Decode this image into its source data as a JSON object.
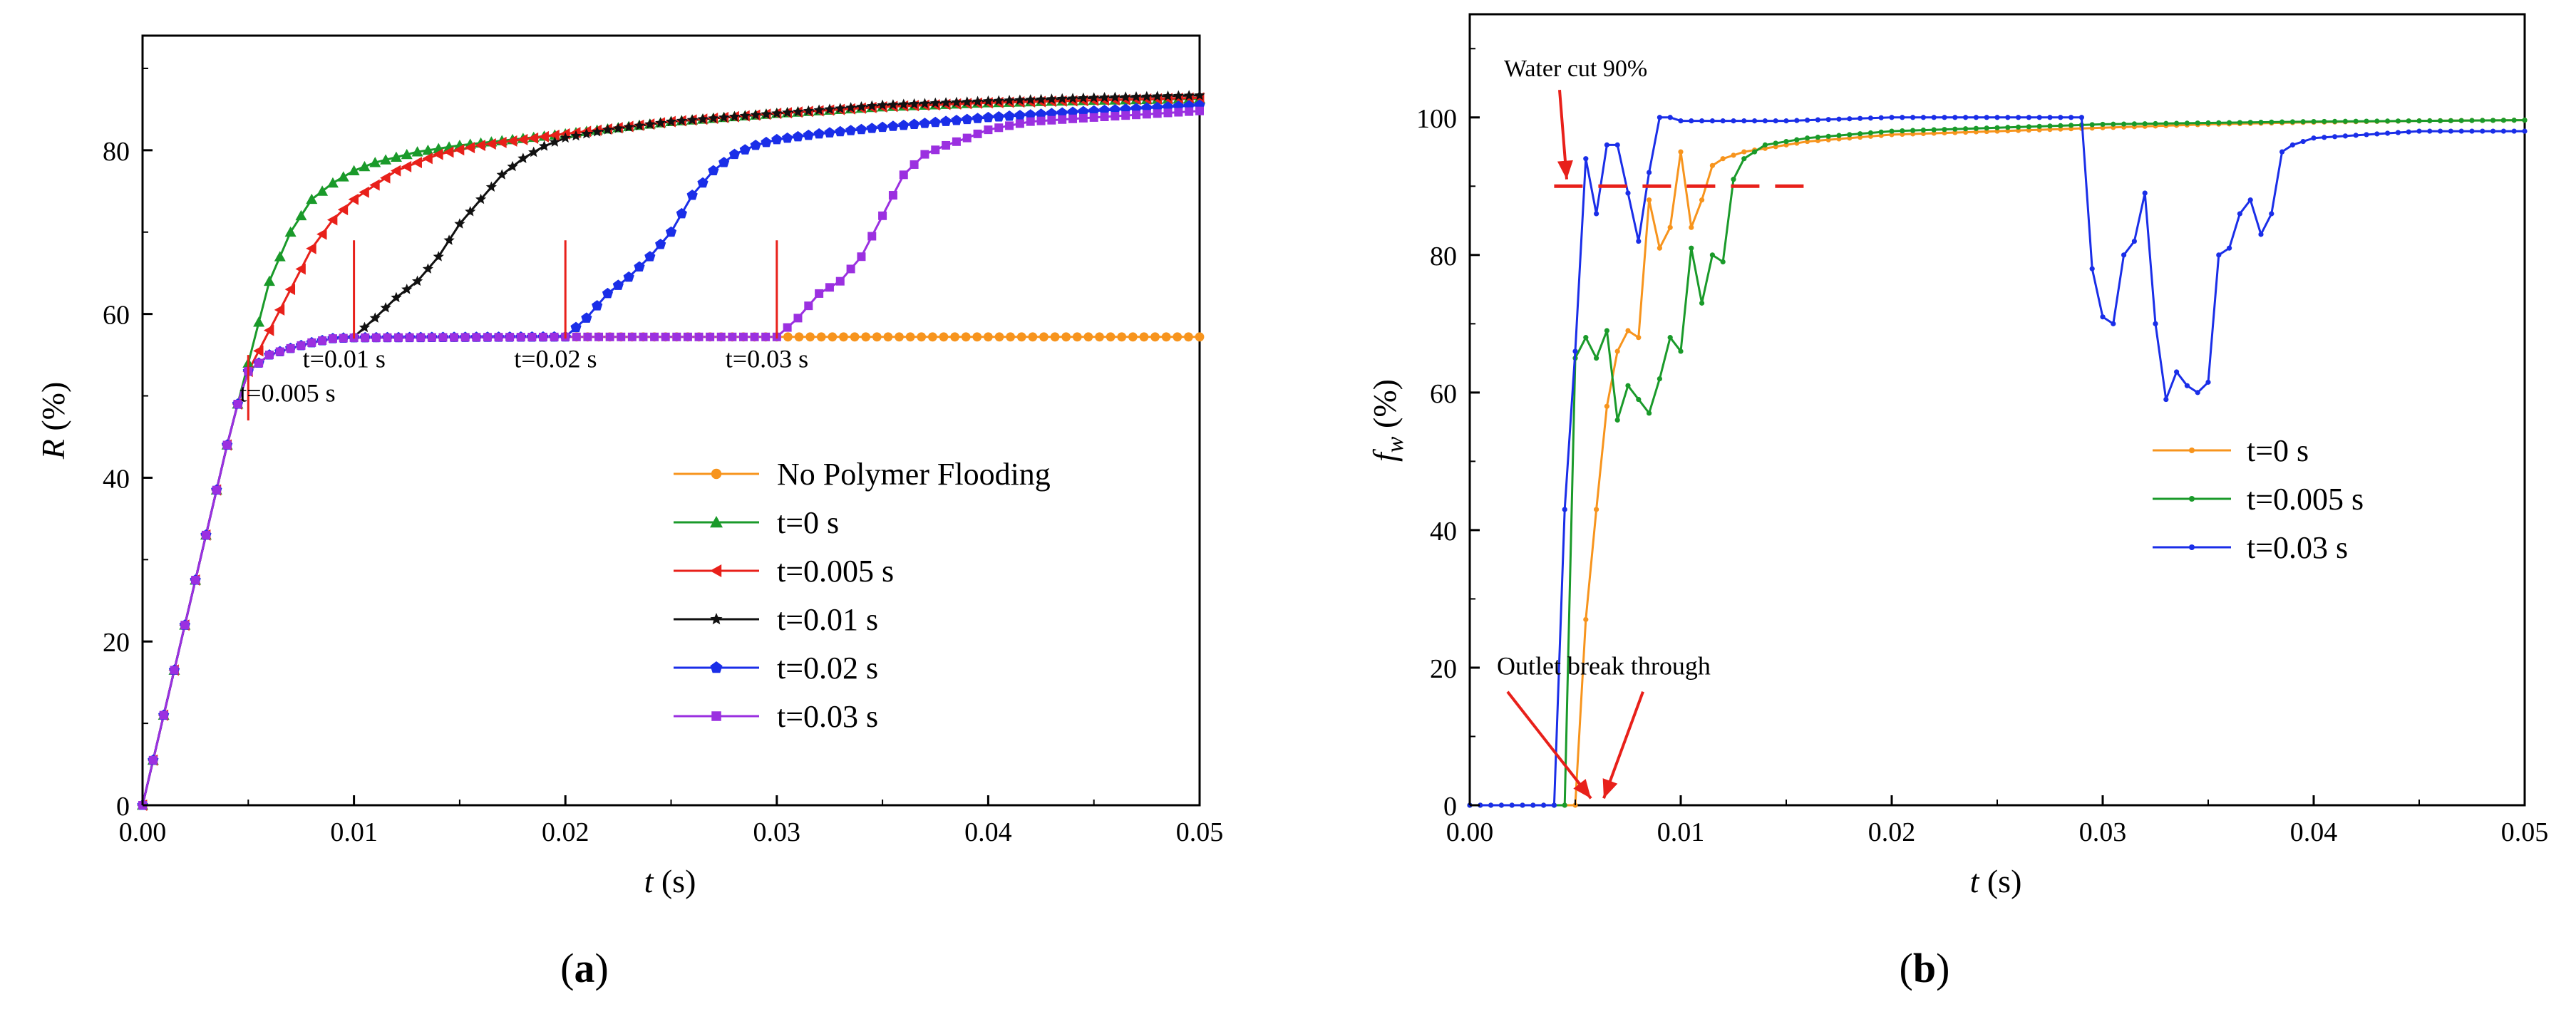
{
  "chart_data": [
    {
      "panel": "(a)",
      "type": "line",
      "ylabel": "R (%)",
      "ylabel_italic": "R",
      "ylabel_rest": " (%)",
      "xlabel": "t (s)",
      "xlabel_italic": "t",
      "xlabel_rest": " (s)",
      "xlim": [
        0,
        0.05
      ],
      "ylim": [
        0,
        94
      ],
      "xticks": [
        0,
        0.01,
        0.02,
        0.03,
        0.04,
        0.05
      ],
      "xtick_labels": [
        "0.00",
        "0.01",
        "0.02",
        "0.03",
        "0.04",
        "0.05"
      ],
      "yticks": [
        0,
        20,
        40,
        60,
        80
      ],
      "ytick_labels": [
        "0",
        "20",
        "40",
        "60",
        "80"
      ],
      "legend": "bottom-right",
      "series": [
        {
          "name": "No Polymer Flooding",
          "color": "#f7941d",
          "marker": "circle",
          "x": [
            0,
            0.0005,
            0.001,
            0.0015,
            0.002,
            0.0025,
            0.003,
            0.0035,
            0.004,
            0.0045,
            0.005,
            0.006,
            0.007,
            0.008,
            0.009,
            0.01,
            0.02,
            0.03,
            0.04,
            0.05
          ],
          "y": [
            0,
            5.5,
            11,
            16.5,
            22,
            27.5,
            33,
            38.5,
            44,
            49,
            53,
            55,
            55.8,
            56.5,
            57,
            57.1,
            57.2,
            57.2,
            57.2,
            57.2
          ]
        },
        {
          "name": "t=0 s",
          "color": "#1a9a2a",
          "marker": "triangle",
          "x": [
            0,
            0.0005,
            0.001,
            0.0015,
            0.002,
            0.0025,
            0.003,
            0.0035,
            0.004,
            0.0045,
            0.005,
            0.0055,
            0.006,
            0.007,
            0.008,
            0.009,
            0.01,
            0.011,
            0.013,
            0.015,
            0.02,
            0.025,
            0.03,
            0.035,
            0.04,
            0.045,
            0.05
          ],
          "y": [
            0,
            5.5,
            11,
            16.5,
            22,
            27.5,
            33,
            38.5,
            44,
            49,
            54,
            59,
            64,
            70,
            74,
            76,
            77.5,
            78.5,
            79.8,
            80.6,
            82,
            83.5,
            84.5,
            85.3,
            85.8,
            86.1,
            86.3
          ]
        },
        {
          "name": "t=0.005 s",
          "color": "#e8201a",
          "marker": "triangle-left",
          "x": [
            0,
            0.0005,
            0.001,
            0.0015,
            0.002,
            0.0025,
            0.003,
            0.0035,
            0.004,
            0.0045,
            0.005,
            0.006,
            0.007,
            0.008,
            0.009,
            0.01,
            0.012,
            0.014,
            0.016,
            0.02,
            0.025,
            0.03,
            0.035,
            0.04,
            0.045,
            0.05
          ],
          "y": [
            0,
            5.5,
            11,
            16.5,
            22,
            27.5,
            33,
            38.5,
            44,
            49,
            53,
            58,
            63,
            68,
            71.5,
            74,
            77.5,
            79.5,
            80.6,
            82,
            83.5,
            84.5,
            85.3,
            85.8,
            86.1,
            86.4
          ]
        },
        {
          "name": "t=0.01 s",
          "color": "#111111",
          "marker": "star",
          "x": [
            0,
            0.0005,
            0.001,
            0.0015,
            0.002,
            0.0025,
            0.003,
            0.0035,
            0.004,
            0.0045,
            0.005,
            0.006,
            0.007,
            0.008,
            0.009,
            0.01,
            0.011,
            0.012,
            0.013,
            0.014,
            0.015,
            0.016,
            0.017,
            0.018,
            0.019,
            0.02,
            0.022,
            0.025,
            0.03,
            0.035,
            0.04,
            0.045,
            0.05
          ],
          "y": [
            0,
            5.5,
            11,
            16.5,
            22,
            27.5,
            33,
            38.5,
            44,
            49,
            53,
            55,
            55.8,
            56.5,
            57,
            57.2,
            59.5,
            62,
            64,
            67,
            71,
            74,
            77,
            79,
            80.5,
            81.5,
            82.5,
            83.5,
            84.5,
            85.5,
            86,
            86.4,
            86.7
          ]
        },
        {
          "name": "t=0.02 s",
          "color": "#1a2ee8",
          "marker": "pentagon",
          "x": [
            0,
            0.0005,
            0.001,
            0.0015,
            0.002,
            0.0025,
            0.003,
            0.0035,
            0.004,
            0.0045,
            0.005,
            0.006,
            0.007,
            0.008,
            0.009,
            0.01,
            0.02,
            0.021,
            0.022,
            0.023,
            0.024,
            0.025,
            0.026,
            0.027,
            0.028,
            0.029,
            0.03,
            0.032,
            0.035,
            0.04,
            0.045,
            0.05
          ],
          "y": [
            0,
            5.5,
            11,
            16.5,
            22,
            27.5,
            33,
            38.5,
            44,
            49,
            53,
            55,
            55.8,
            56.5,
            57,
            57.1,
            57.2,
            59.5,
            62.5,
            64.5,
            67,
            70,
            74.5,
            77.5,
            79.5,
            80.6,
            81.3,
            82,
            82.8,
            84,
            84.8,
            85.5
          ]
        },
        {
          "name": "t=0.03 s",
          "color": "#9b30e0",
          "marker": "square",
          "x": [
            0,
            0.0005,
            0.001,
            0.0015,
            0.002,
            0.0025,
            0.003,
            0.0035,
            0.004,
            0.0045,
            0.005,
            0.006,
            0.007,
            0.008,
            0.009,
            0.01,
            0.02,
            0.03,
            0.031,
            0.032,
            0.033,
            0.034,
            0.035,
            0.036,
            0.037,
            0.038,
            0.039,
            0.04,
            0.042,
            0.045,
            0.05
          ],
          "y": [
            0,
            5.5,
            11,
            16.5,
            22,
            27.5,
            33,
            38.5,
            44,
            49,
            53,
            55,
            55.8,
            56.5,
            57,
            57.1,
            57.2,
            57.2,
            59.5,
            62.5,
            64,
            67,
            72,
            77,
            79.5,
            80.6,
            81.5,
            82.5,
            83.5,
            84,
            84.8
          ]
        }
      ],
      "annotations": [
        {
          "text": "t=0.005 s",
          "x": 0.005,
          "y": 51
        },
        {
          "text": "t=0.01 s",
          "x": 0.01,
          "y": 60
        },
        {
          "text": "t=0.02 s",
          "x": 0.02,
          "y": 60.5
        },
        {
          "text": "t=0.03 s",
          "x": 0.03,
          "y": 60.5
        }
      ]
    },
    {
      "panel": "(b)",
      "type": "line",
      "ylabel": "fw (%)",
      "ylabel_italic": "f",
      "ylabel_sub": "w",
      "ylabel_rest": " (%)",
      "xlabel": "t (s)",
      "xlabel_italic": "t",
      "xlabel_rest": " (s)",
      "xlim": [
        0,
        0.05
      ],
      "ylim": [
        0,
        115
      ],
      "xticks": [
        0,
        0.01,
        0.02,
        0.03,
        0.04,
        0.05
      ],
      "xtick_labels": [
        "0.00",
        "0.01",
        "0.02",
        "0.03",
        "0.04",
        "0.05"
      ],
      "yticks": [
        0,
        20,
        40,
        60,
        80,
        100
      ],
      "ytick_labels": [
        "0",
        "20",
        "40",
        "60",
        "80",
        "100"
      ],
      "legend": "center-right",
      "series": [
        {
          "name": "t=0 s",
          "color": "#f7941d",
          "marker": "dot",
          "x": [
            0,
            0.001,
            0.002,
            0.003,
            0.004,
            0.0045,
            0.005,
            0.0055,
            0.006,
            0.0065,
            0.007,
            0.0075,
            0.008,
            0.0085,
            0.009,
            0.0095,
            0.01,
            0.0105,
            0.011,
            0.0115,
            0.012,
            0.013,
            0.014,
            0.015,
            0.016,
            0.018,
            0.02,
            0.025,
            0.03,
            0.035,
            0.04,
            0.045,
            0.05
          ],
          "y": [
            0,
            0,
            0,
            0,
            0,
            0,
            0,
            27,
            43,
            58,
            66,
            69,
            68,
            88,
            81,
            84,
            95,
            84,
            88,
            93,
            94,
            95,
            95.5,
            96,
            96.5,
            97,
            97.5,
            98,
            98.5,
            99,
            99.3,
            99.5,
            99.6
          ]
        },
        {
          "name": "t=0.005 s",
          "color": "#1a9a2a",
          "marker": "dot",
          "x": [
            0,
            0.001,
            0.002,
            0.003,
            0.004,
            0.0045,
            0.005,
            0.0055,
            0.006,
            0.0065,
            0.007,
            0.0075,
            0.008,
            0.0085,
            0.009,
            0.0095,
            0.01,
            0.0105,
            0.011,
            0.0115,
            0.012,
            0.0125,
            0.013,
            0.014,
            0.015,
            0.016,
            0.018,
            0.02,
            0.025,
            0.03,
            0.035,
            0.04,
            0.045,
            0.05
          ],
          "y": [
            0,
            0,
            0,
            0,
            0,
            0,
            65,
            68,
            65,
            69,
            56,
            61,
            59,
            57,
            62,
            68,
            66,
            81,
            73,
            80,
            79,
            91,
            94,
            96,
            96.5,
            97,
            97.5,
            98,
            98.5,
            99,
            99.2,
            99.4,
            99.5,
            99.6
          ]
        },
        {
          "name": "t=0.03 s",
          "color": "#1a2ee8",
          "marker": "dot",
          "x": [
            0,
            0.001,
            0.002,
            0.003,
            0.0035,
            0.004,
            0.0045,
            0.005,
            0.0055,
            0.006,
            0.0065,
            0.007,
            0.0075,
            0.008,
            0.0085,
            0.009,
            0.0095,
            0.01,
            0.015,
            0.02,
            0.025,
            0.029,
            0.0295,
            0.03,
            0.0305,
            0.031,
            0.0315,
            0.032,
            0.0325,
            0.033,
            0.0335,
            0.034,
            0.0345,
            0.035,
            0.0355,
            0.036,
            0.0365,
            0.037,
            0.0375,
            0.038,
            0.0385,
            0.039,
            0.04,
            0.045,
            0.05
          ],
          "y": [
            0,
            0,
            0,
            0,
            0,
            0,
            43,
            66,
            94,
            86,
            96,
            96,
            89,
            82,
            92,
            100,
            100,
            99.5,
            99.5,
            100,
            100,
            100,
            78,
            71,
            70,
            80,
            82,
            89,
            70,
            59,
            63,
            61,
            60,
            61.5,
            80,
            81,
            86,
            88,
            83,
            86,
            95,
            96,
            97,
            98,
            98
          ]
        }
      ],
      "annotations": [
        {
          "text": "Water cut 90%",
          "x": 0.0015,
          "y": 106
        },
        {
          "text": "Outlet break through",
          "x": 0.0015,
          "y": 19
        }
      ],
      "reference_line": {
        "y": 90,
        "x_start": 0.004,
        "x_end": 0.016,
        "color": "#e8201a"
      }
    }
  ],
  "captions": {
    "a": "(a)",
    "b": "(b)"
  },
  "caption_parts": {
    "a": {
      "open": "(",
      "letter": "a",
      "close": ")"
    },
    "b": {
      "open": "(",
      "letter": "b",
      "close": ")"
    }
  }
}
